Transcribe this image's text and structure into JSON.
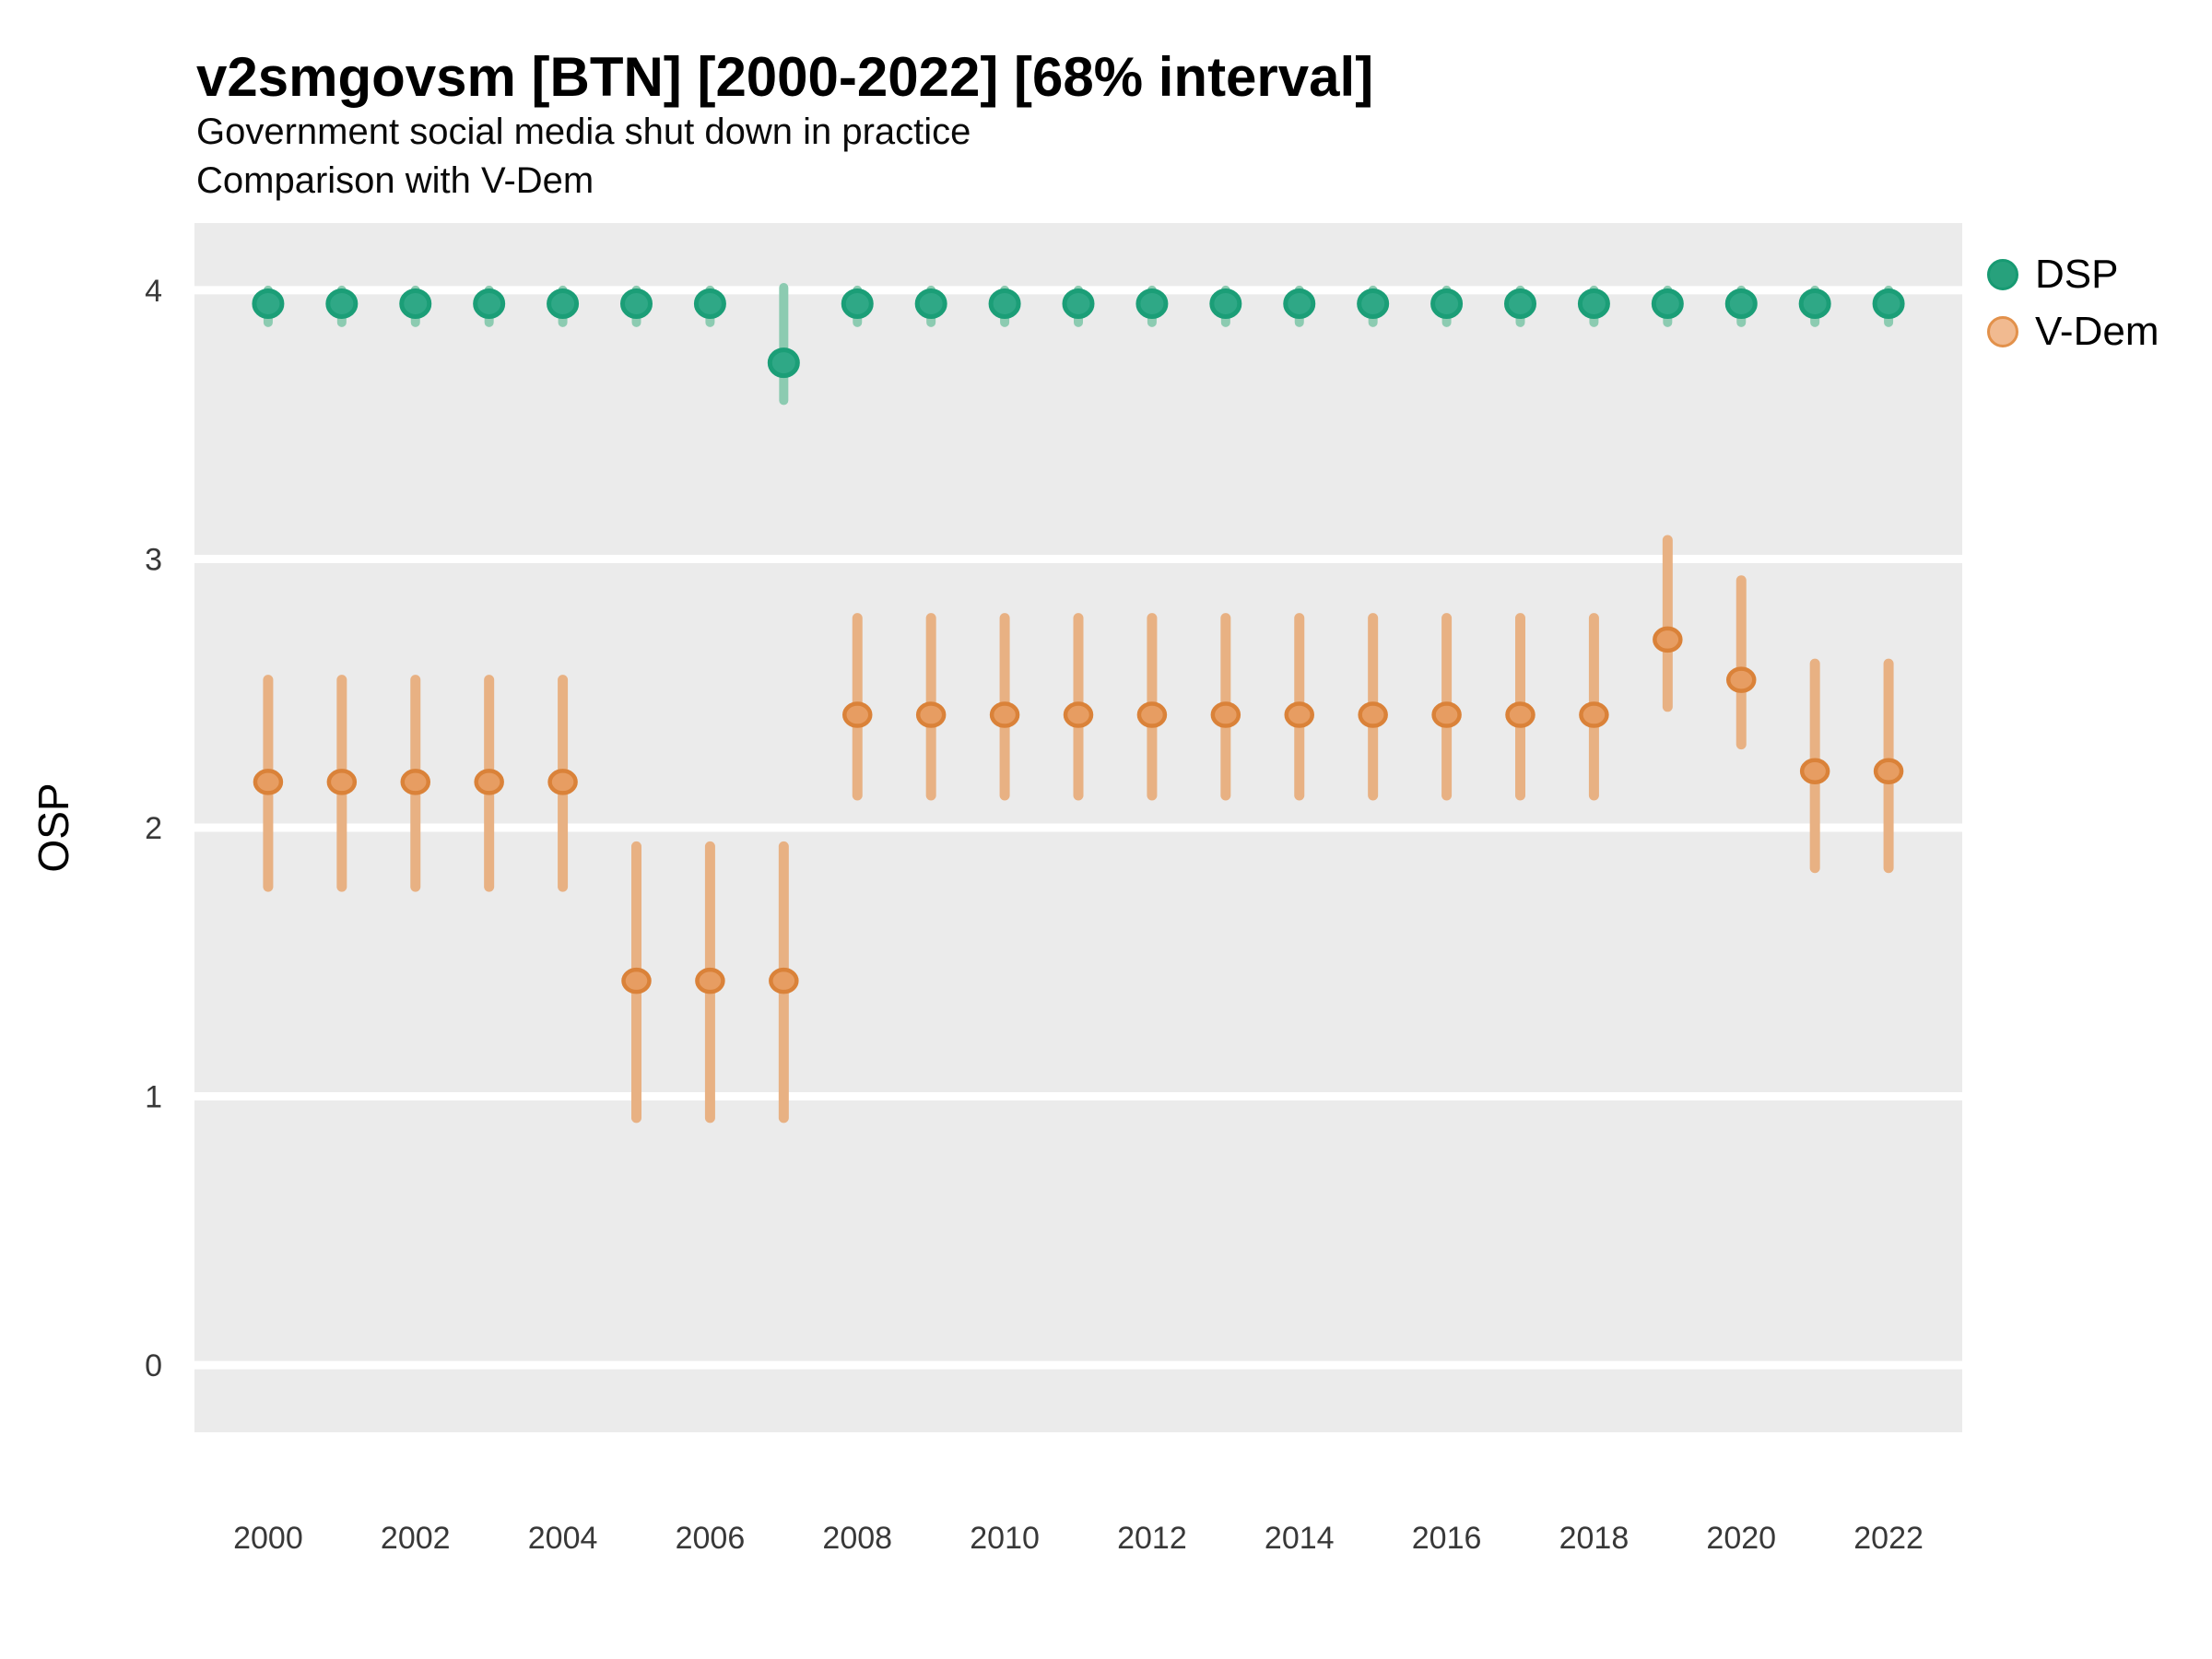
{
  "header": {
    "title": "v2smgovsm [BTN] [2000-2022] [68% interval]",
    "subtitle_line1": "Government social media shut down in practice",
    "subtitle_line2": "Comparison with V-Dem"
  },
  "y_axis": {
    "title": "OSP",
    "ticks": [
      0,
      1,
      2,
      3,
      4
    ]
  },
  "x_axis": {
    "ticks": [
      2000,
      2002,
      2004,
      2006,
      2008,
      2010,
      2012,
      2014,
      2016,
      2018,
      2020,
      2022
    ]
  },
  "legend": {
    "items": [
      {
        "id": "dsp",
        "label": "DSP"
      },
      {
        "id": "vdem",
        "label": "V-Dem"
      }
    ]
  },
  "colors": {
    "panel_background": "#EBEBEB",
    "gridline": "#FFFFFF",
    "dsp_point_fill": "#2FA886",
    "dsp_point_stroke": "#1B9E77",
    "dsp_interval": "#8CCBB1",
    "vdem_point_fill": "#E79D62",
    "vdem_point_stroke": "#DA8239",
    "vdem_interval": "#E8B183",
    "legend_dsp_fill": "#27A17C",
    "legend_dsp_stroke": "#179A72",
    "legend_vdem_fill": "#F1BA90",
    "legend_vdem_stroke": "#E2914B",
    "tick_text": "#383838"
  },
  "chart_data": {
    "type": "scatter",
    "title": "v2smgovsm [BTN] [2000-2022] [68% interval]",
    "subtitle": "Government social media shut down in practice / Comparison with V-Dem",
    "xlabel": "",
    "ylabel": "OSP",
    "interval": "68%",
    "grid": "horizontal-only",
    "legend_position": "right-top",
    "xlim": [
      1999,
      2023
    ],
    "ylim": [
      -0.25,
      4.25
    ],
    "x": [
      2000,
      2001,
      2002,
      2003,
      2004,
      2005,
      2006,
      2007,
      2008,
      2009,
      2010,
      2011,
      2012,
      2013,
      2014,
      2015,
      2016,
      2017,
      2018,
      2019,
      2020,
      2021,
      2022
    ],
    "series": [
      {
        "id": "dsp",
        "name": "DSP",
        "values": [
          3.95,
          3.95,
          3.95,
          3.95,
          3.95,
          3.95,
          3.95,
          3.73,
          3.95,
          3.95,
          3.95,
          3.95,
          3.95,
          3.95,
          3.95,
          3.95,
          3.95,
          3.95,
          3.95,
          3.95,
          3.95,
          3.95,
          3.95
        ],
        "lo": [
          3.88,
          3.88,
          3.88,
          3.88,
          3.88,
          3.88,
          3.88,
          3.59,
          3.88,
          3.88,
          3.88,
          3.88,
          3.88,
          3.88,
          3.88,
          3.88,
          3.88,
          3.88,
          3.88,
          3.88,
          3.88,
          3.88,
          3.88
        ],
        "hi": [
          4.0,
          4.0,
          4.0,
          4.0,
          4.0,
          4.0,
          4.0,
          4.01,
          4.0,
          4.0,
          4.0,
          4.0,
          4.0,
          4.0,
          4.0,
          4.0,
          4.0,
          4.0,
          4.0,
          4.0,
          4.0,
          4.0,
          4.0
        ]
      },
      {
        "id": "vdem",
        "name": "V-Dem",
        "values": [
          2.17,
          2.17,
          2.17,
          2.17,
          2.17,
          1.43,
          1.43,
          1.43,
          2.42,
          2.42,
          2.42,
          2.42,
          2.42,
          2.42,
          2.42,
          2.42,
          2.42,
          2.42,
          2.42,
          2.7,
          2.55,
          2.21,
          2.21
        ],
        "lo": [
          1.78,
          1.78,
          1.78,
          1.78,
          1.78,
          0.92,
          0.92,
          0.92,
          2.12,
          2.12,
          2.12,
          2.12,
          2.12,
          2.12,
          2.12,
          2.12,
          2.12,
          2.12,
          2.12,
          2.45,
          2.31,
          1.85,
          1.85
        ],
        "hi": [
          2.55,
          2.55,
          2.55,
          2.55,
          2.55,
          1.93,
          1.93,
          1.93,
          2.78,
          2.78,
          2.78,
          2.78,
          2.78,
          2.78,
          2.78,
          2.78,
          2.78,
          2.78,
          2.78,
          3.07,
          2.92,
          2.61,
          2.61
        ]
      }
    ]
  }
}
